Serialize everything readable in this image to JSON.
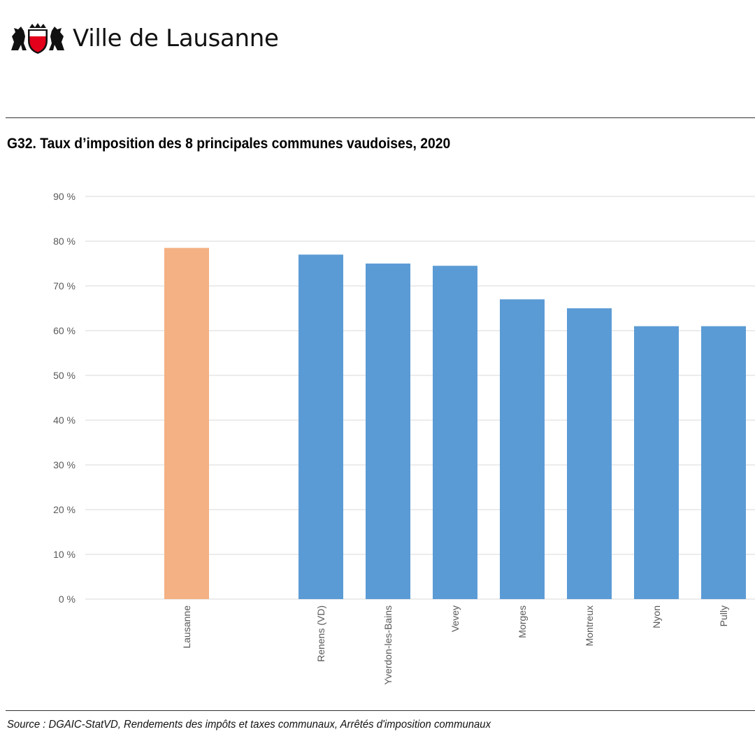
{
  "brand": {
    "name": "Ville de Lausanne",
    "logo_icon": "lausanne-coat-of-arms-icon"
  },
  "chart_title": "G32. Taux d’imposition des 8 principales communes vaudoises, 2020",
  "source": "Source : DGAIC-StatVD, Rendements des impôts et taxes communaux, Arrêtés d'imposition communaux",
  "chart_data": {
    "type": "bar",
    "categories": [
      "Lausanne",
      "Renens (VD)",
      "Yverdon-les-Bains",
      "Vevey",
      "Morges",
      "Montreux",
      "Nyon",
      "Pully"
    ],
    "values": [
      78.5,
      77,
      75,
      74.5,
      67,
      65,
      61,
      61
    ],
    "ylim": [
      0,
      90
    ],
    "y_ticks": [
      "0 %",
      "10 %",
      "20 %",
      "30 %",
      "40 %",
      "50 %",
      "60 %",
      "70 %",
      "80 %",
      "90 %"
    ],
    "grid": true,
    "colors": {
      "highlight": "#F4B183",
      "default": "#5B9BD5",
      "grid": "#D9D9D9"
    },
    "highlight_category": "Lausanne"
  }
}
